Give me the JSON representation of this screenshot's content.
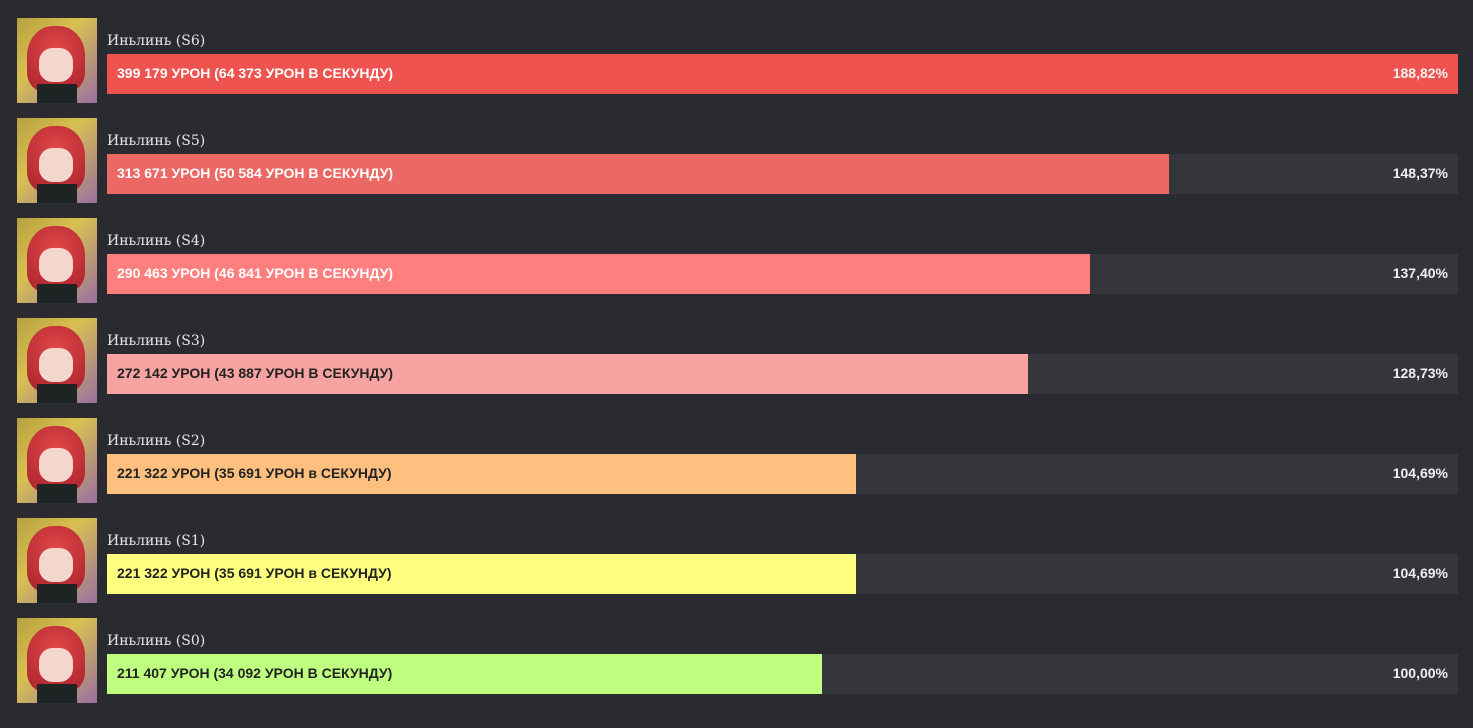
{
  "chart_data": {
    "type": "bar",
    "orientation": "horizontal",
    "categories": [
      "Иньлинь (S6)",
      "Иньлинь (S5)",
      "Иньлинь (S4)",
      "Иньлинь (S3)",
      "Иньлинь (S2)",
      "Иньлинь (S1)",
      "Иньлинь (S0)"
    ],
    "values": [
      188.82,
      148.37,
      137.4,
      128.73,
      104.69,
      104.69,
      100.0
    ],
    "labels": [
      "399 179 УРОН (64 373 УРОН В СЕКУНДУ)",
      "313 671 УРОН (50 584 УРОН В СЕКУНДУ)",
      "290 463 УРОН (46 841 УРОН В СЕКУНДУ)",
      "272 142 УРОН (43 887 УРОН В СЕКУНДУ)",
      "221 322 УРОН (35 691 УРОН в СЕКУНДУ)",
      "221 322 УРОН (35 691 УРОН в СЕКУНДУ)",
      "211 407 УРОН (34 092 УРОН В СЕКУНДУ)"
    ],
    "percent_labels": [
      "188,82%",
      "148,37%",
      "137,40%",
      "128,73%",
      "104,69%",
      "104,69%",
      "100,00%"
    ],
    "colors": [
      "#ef5350",
      "#ec6865",
      "#ff7f7e",
      "#f7a3a2",
      "#ffbf7f",
      "#ffff7f",
      "#bfff7f"
    ],
    "text_colors": [
      "#ffffff",
      "#ffffff",
      "#ffffff",
      "#222222",
      "#222222",
      "#222222",
      "#222222"
    ],
    "xlim": [
      0,
      188.82
    ]
  }
}
